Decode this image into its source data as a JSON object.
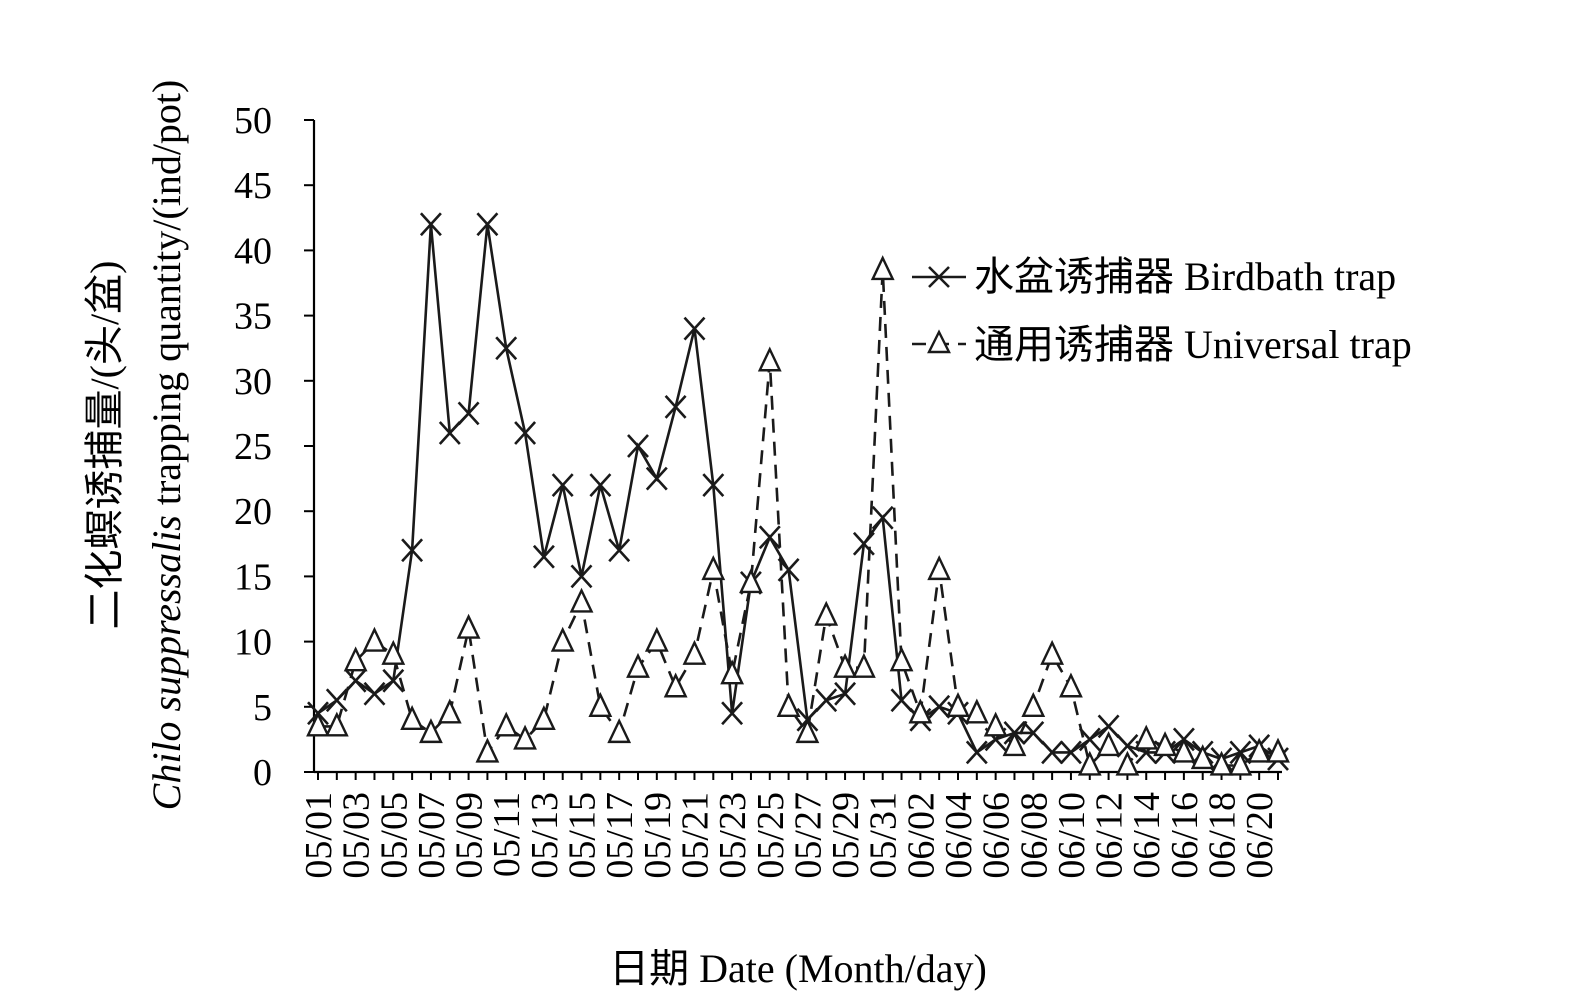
{
  "chart_data": {
    "type": "line",
    "xlabel": "日期 Date (Month/day)",
    "ylabel_cn": "二化螟诱捕量/(头/盆)",
    "ylabel_species": "Chilo suppressalis",
    "ylabel_rest": " trapping quantity/(ind/pot)",
    "ylim": [
      0,
      50
    ],
    "yticks": [
      0,
      5,
      10,
      15,
      20,
      25,
      30,
      35,
      40,
      45,
      50
    ],
    "categories": [
      "05/01",
      "05/02",
      "05/03",
      "05/04",
      "05/05",
      "05/06",
      "05/07",
      "05/08",
      "05/09",
      "05/10",
      "05/11",
      "05/12",
      "05/13",
      "05/14",
      "05/15",
      "05/16",
      "05/17",
      "05/18",
      "05/19",
      "05/20",
      "05/21",
      "05/22",
      "05/23",
      "05/24",
      "05/25",
      "05/26",
      "05/27",
      "05/28",
      "05/29",
      "05/30",
      "05/31",
      "06/01",
      "06/02",
      "06/03",
      "06/04",
      "06/05",
      "06/06",
      "06/07",
      "06/08",
      "06/09",
      "06/10",
      "06/11",
      "06/12",
      "06/13",
      "06/14",
      "06/15",
      "06/16",
      "06/17",
      "06/18",
      "06/19",
      "06/20",
      "06/21"
    ],
    "tick_labels": [
      "05/01",
      "05/03",
      "05/05",
      "05/07",
      "05/09",
      "05/11",
      "05/13",
      "05/15",
      "05/17",
      "05/19",
      "05/21",
      "05/23",
      "05/25",
      "05/27",
      "05/29",
      "05/31",
      "06/02",
      "06/04",
      "06/06",
      "06/08",
      "06/10",
      "06/12",
      "06/14",
      "06/16",
      "06/18",
      "06/20"
    ],
    "legend_position": "top-right",
    "grid": false,
    "series": [
      {
        "name": "水盆诱捕器 Birdbath trap",
        "style": "solid",
        "marker": "x",
        "values": [
          4.5,
          5.5,
          7.0,
          6.0,
          7.0,
          17.0,
          42.0,
          26.0,
          27.5,
          42.0,
          32.5,
          26.0,
          16.5,
          22.0,
          15.0,
          22.0,
          17.0,
          25.0,
          22.5,
          28.0,
          34.0,
          22.0,
          4.5,
          14.5,
          18.0,
          15.5,
          4.0,
          5.5,
          6.0,
          17.5,
          19.5,
          5.5,
          4.0,
          5.0,
          4.5,
          1.5,
          2.5,
          3.0,
          3.0,
          1.5,
          1.5,
          2.5,
          3.5,
          2.0,
          1.5,
          1.5,
          2.5,
          1.5,
          1.0,
          1.5,
          2.0,
          1.0
        ]
      },
      {
        "name": "通用诱捕器 Universal trap",
        "style": "dashed",
        "marker": "triangle",
        "values": [
          3.5,
          3.5,
          8.5,
          10.0,
          9.0,
          4.0,
          3.0,
          4.5,
          11.0,
          1.5,
          3.5,
          2.5,
          4.0,
          10.0,
          13.0,
          5.0,
          3.0,
          8.0,
          10.0,
          6.5,
          9.0,
          15.5,
          7.5,
          14.5,
          31.5,
          5.0,
          3.0,
          12.0,
          8.0,
          8.0,
          38.5,
          8.5,
          4.5,
          15.5,
          5.0,
          4.5,
          3.5,
          2.0,
          5.0,
          9.0,
          6.5,
          0.5,
          2.0,
          0.5,
          2.5,
          2.0,
          1.5,
          1.0,
          0.5,
          0.5,
          1.5,
          1.5
        ]
      }
    ]
  }
}
